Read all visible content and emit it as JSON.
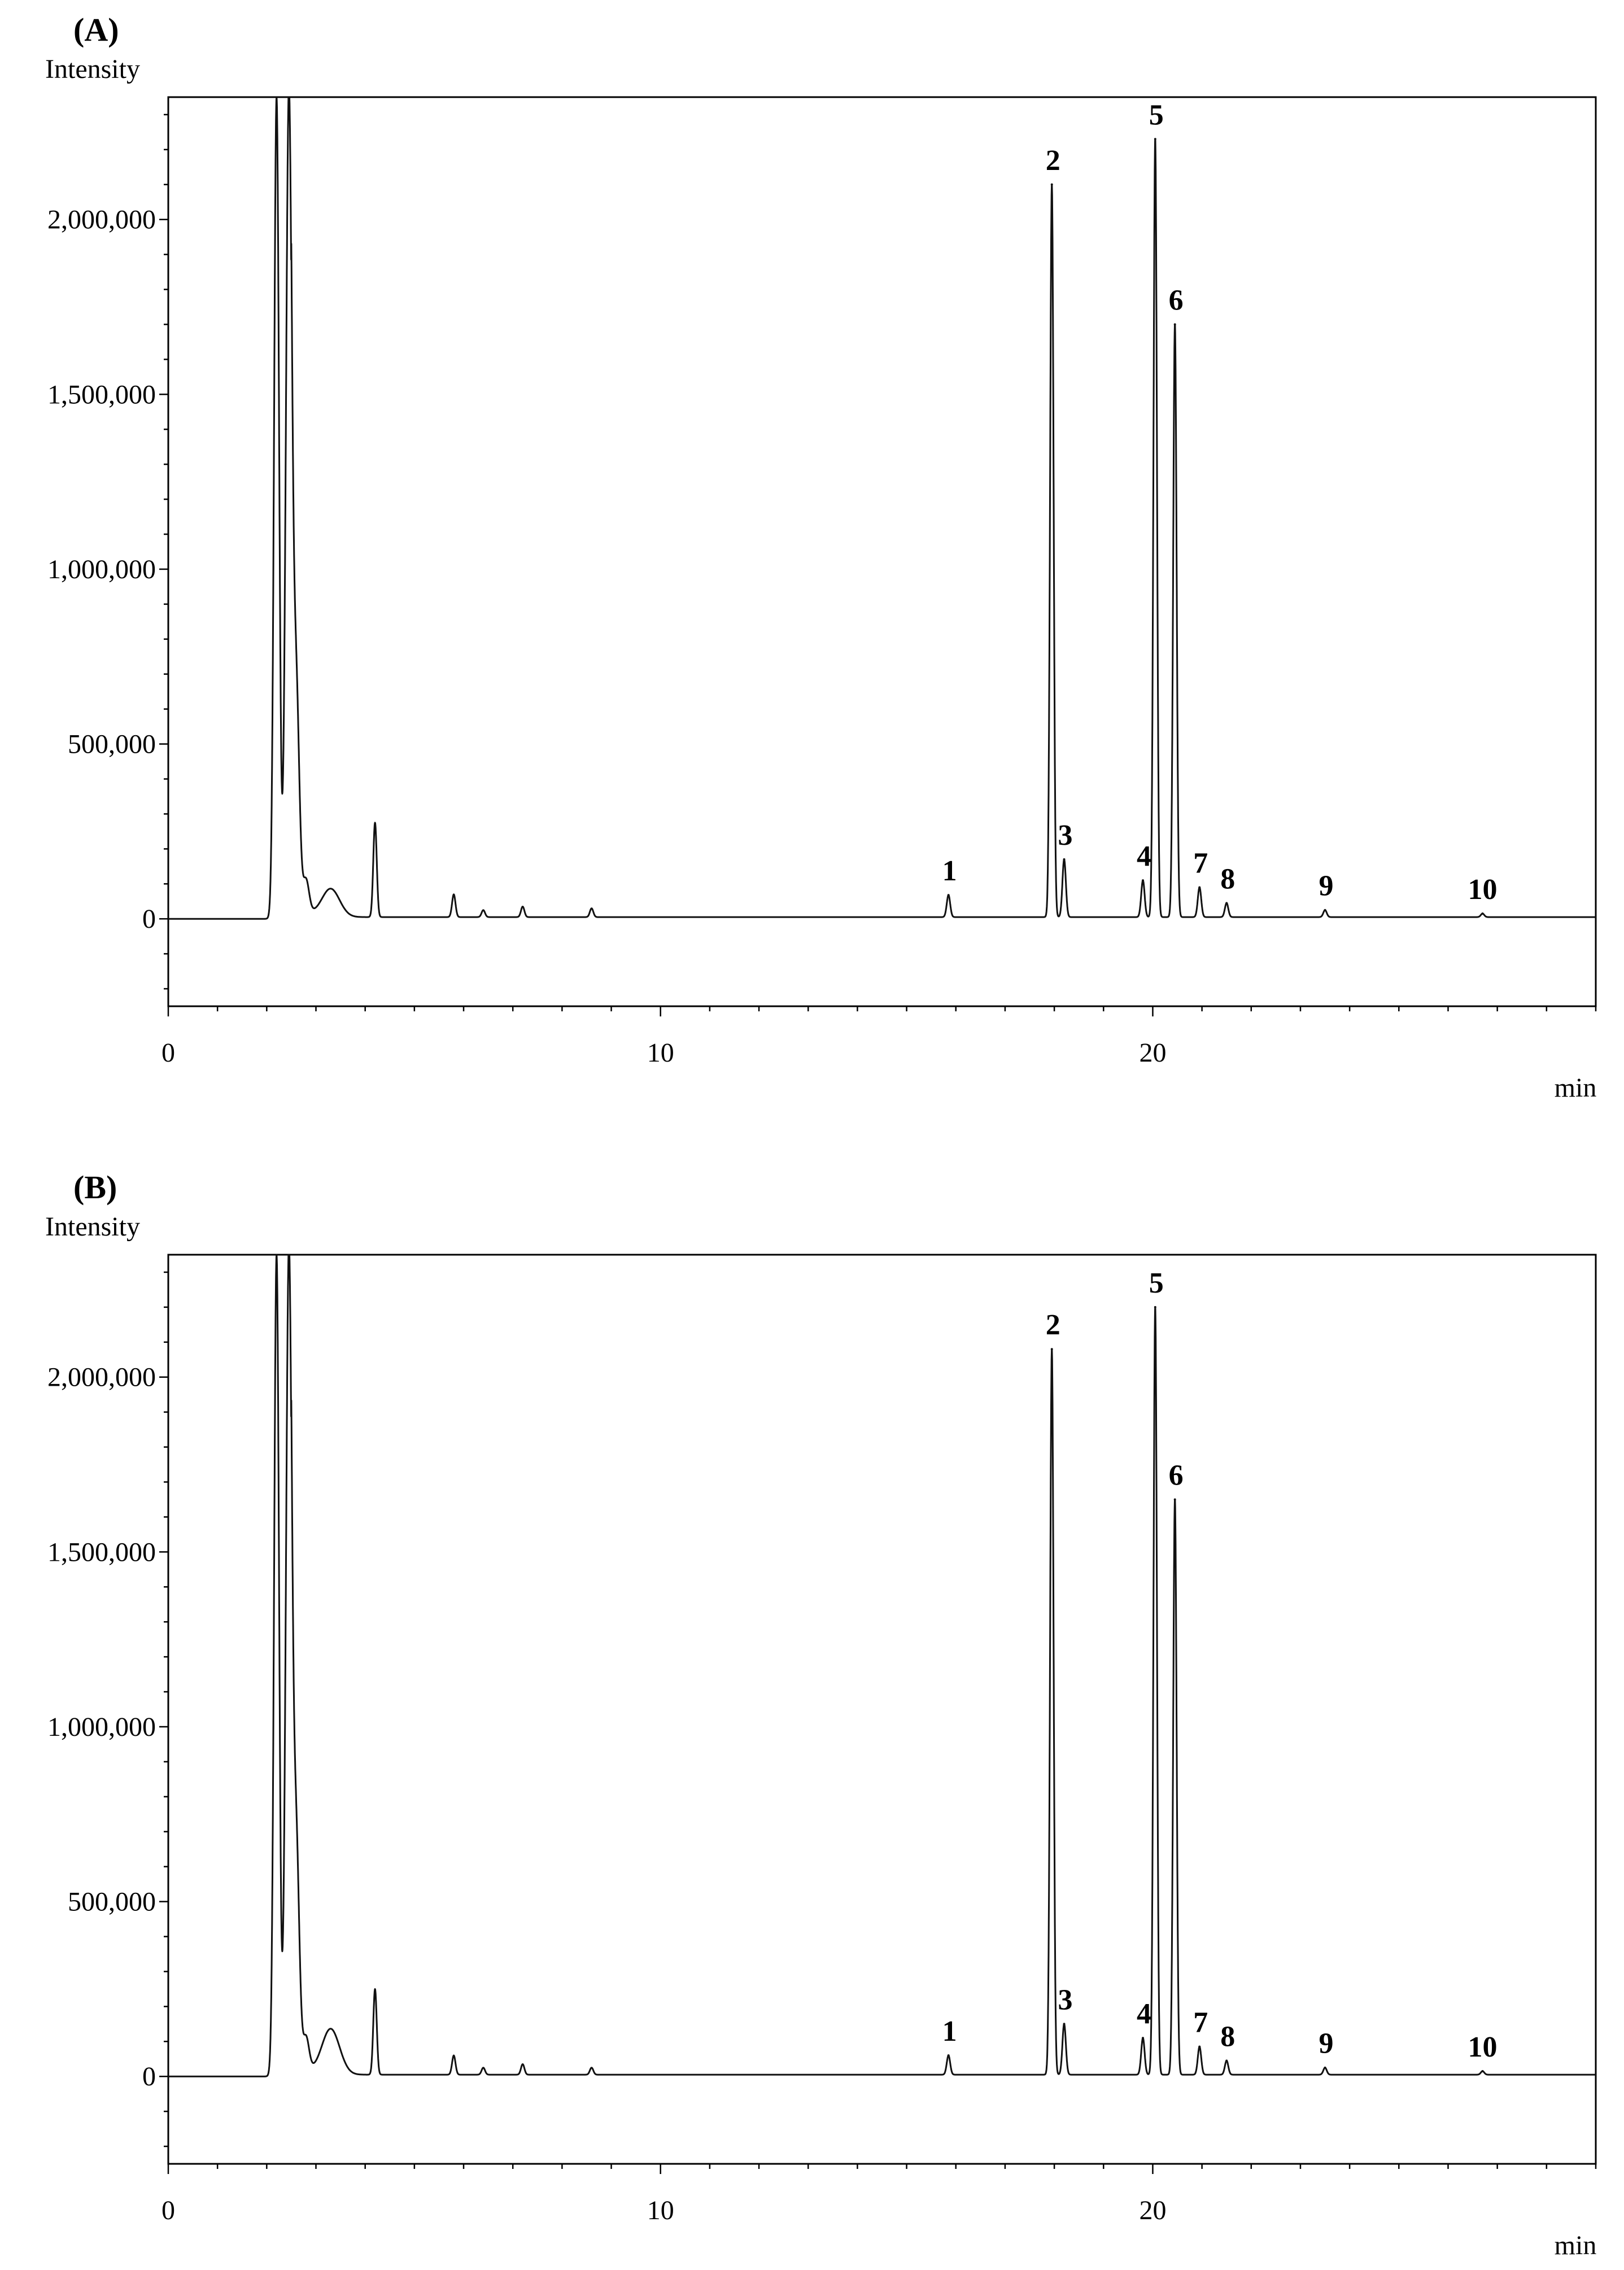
{
  "chart_data": [
    {
      "type": "line",
      "panel_label": "(A)",
      "title": "",
      "xlabel": "min",
      "ylabel": "Intensity",
      "xlim": [
        0,
        29
      ],
      "ylim": [
        -250000,
        2350000
      ],
      "x_ticks": [
        0,
        10,
        20
      ],
      "x_tick_labels": [
        "0",
        "10",
        "20"
      ],
      "y_ticks": [
        0,
        500000,
        1000000,
        1500000,
        2000000
      ],
      "y_tick_labels": [
        "0",
        "500,000",
        "1,000,000",
        "1,500,000",
        "2,000,000"
      ],
      "grid": false,
      "legend": "none",
      "series": [
        {
          "baseline": 5000,
          "peaks": [
            {
              "x": 2.2,
              "y": 2350000,
              "label": ""
            },
            {
              "x": 2.45,
              "y": 2350000,
              "label": ""
            },
            {
              "x": 2.6,
              "y": 600000,
              "label": ""
            },
            {
              "x": 2.8,
              "y": 90000,
              "label": ""
            },
            {
              "x": 3.3,
              "y": 85000,
              "label": ""
            },
            {
              "x": 4.2,
              "y": 275000,
              "label": ""
            },
            {
              "x": 5.8,
              "y": 70000,
              "label": ""
            },
            {
              "x": 6.4,
              "y": 25000,
              "label": ""
            },
            {
              "x": 7.2,
              "y": 35000,
              "label": ""
            },
            {
              "x": 8.6,
              "y": 30000,
              "label": ""
            },
            {
              "x": 15.85,
              "y": 68000,
              "label": "1"
            },
            {
              "x": 17.95,
              "y": 2100000,
              "label": "2"
            },
            {
              "x": 18.2,
              "y": 170000,
              "label": "3"
            },
            {
              "x": 19.8,
              "y": 110000,
              "label": "4"
            },
            {
              "x": 20.05,
              "y": 2230000,
              "label": "5"
            },
            {
              "x": 20.45,
              "y": 1700000,
              "label": "6"
            },
            {
              "x": 20.95,
              "y": 90000,
              "label": "7"
            },
            {
              "x": 21.5,
              "y": 45000,
              "label": "8"
            },
            {
              "x": 23.5,
              "y": 25000,
              "label": "9"
            },
            {
              "x": 26.7,
              "y": 15000,
              "label": "10"
            }
          ]
        }
      ]
    },
    {
      "type": "line",
      "panel_label": "(B)",
      "title": "",
      "xlabel": "min",
      "ylabel": "Intensity",
      "xlim": [
        0,
        29
      ],
      "ylim": [
        -250000,
        2350000
      ],
      "x_ticks": [
        0,
        10,
        20
      ],
      "x_tick_labels": [
        "0",
        "10",
        "20"
      ],
      "y_ticks": [
        0,
        500000,
        1000000,
        1500000,
        2000000
      ],
      "y_tick_labels": [
        "0",
        "500,000",
        "1,000,000",
        "1,500,000",
        "2,000,000"
      ],
      "grid": false,
      "legend": "none",
      "series": [
        {
          "baseline": 5000,
          "peaks": [
            {
              "x": 2.2,
              "y": 2350000,
              "label": ""
            },
            {
              "x": 2.45,
              "y": 2350000,
              "label": ""
            },
            {
              "x": 2.6,
              "y": 610000,
              "label": ""
            },
            {
              "x": 2.8,
              "y": 90000,
              "label": ""
            },
            {
              "x": 3.3,
              "y": 135000,
              "label": ""
            },
            {
              "x": 4.2,
              "y": 250000,
              "label": ""
            },
            {
              "x": 5.8,
              "y": 60000,
              "label": ""
            },
            {
              "x": 6.4,
              "y": 25000,
              "label": ""
            },
            {
              "x": 7.2,
              "y": 35000,
              "label": ""
            },
            {
              "x": 8.6,
              "y": 25000,
              "label": ""
            },
            {
              "x": 15.85,
              "y": 60000,
              "label": "1"
            },
            {
              "x": 17.95,
              "y": 2080000,
              "label": "2"
            },
            {
              "x": 18.2,
              "y": 150000,
              "label": "3"
            },
            {
              "x": 19.8,
              "y": 110000,
              "label": "4"
            },
            {
              "x": 20.05,
              "y": 2200000,
              "label": "5"
            },
            {
              "x": 20.45,
              "y": 1650000,
              "label": "6"
            },
            {
              "x": 20.95,
              "y": 85000,
              "label": "7"
            },
            {
              "x": 21.5,
              "y": 45000,
              "label": "8"
            },
            {
              "x": 23.5,
              "y": 25000,
              "label": "9"
            },
            {
              "x": 26.7,
              "y": 15000,
              "label": "10"
            }
          ]
        }
      ]
    }
  ]
}
